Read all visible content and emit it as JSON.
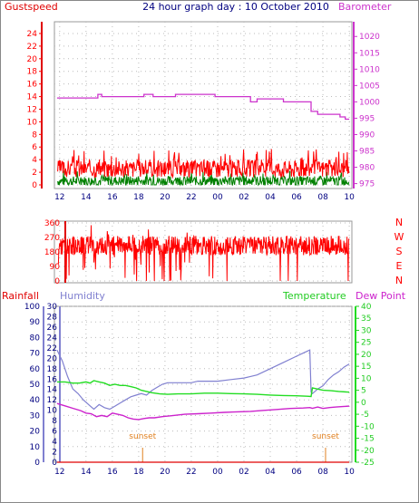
{
  "title": "24 hour graph day : 10 October 2010",
  "colors": {
    "gust": "#ff0000",
    "wind": "#008000",
    "baro": "#cc33cc",
    "dir": "#ff0000",
    "hum": "#8080d0",
    "temp": "#22dd22",
    "dew": "#cc22cc",
    "rain": "#e00000",
    "sunset": "#e08020",
    "axisBlue": "#000080",
    "frame": "#999999",
    "grid": "#bbbbbb"
  },
  "chart_data": [
    {
      "type": "line",
      "name": "wind-barometer",
      "left_label": "Gustspeed",
      "right_label": "Barometer",
      "left_ticks": [
        "0",
        "2",
        "4",
        "6",
        "8",
        "10",
        "12",
        "14",
        "16",
        "18",
        "20",
        "22",
        "24"
      ],
      "right_ticks": [
        "975",
        "980",
        "985",
        "990",
        "995",
        "1000",
        "1005",
        "1010",
        "1015",
        "1020"
      ],
      "ylim_left": [
        0,
        25
      ],
      "ylim_right": [
        973.5,
        1024.5
      ],
      "x_ticks": [
        "12",
        "14",
        "16",
        "18",
        "20",
        "22",
        "00",
        "02",
        "04",
        "06",
        "08",
        "10",
        "12",
        "14",
        "16",
        "18",
        "20",
        "22"
      ],
      "xlim": [
        11.6,
        34.2
      ],
      "series": [
        {
          "role": "barometer",
          "x": [
            11.8,
            14.9,
            14.9,
            15.2,
            15.2,
            18.4,
            18.4,
            19.1,
            19.1,
            20.8,
            20.8,
            23.8,
            23.8,
            26.5,
            26.5,
            27.0,
            27.0,
            29.0,
            29.0,
            31.1,
            31.1,
            31.6,
            31.6,
            33.3,
            33.3,
            33.7,
            33.7,
            34.0
          ],
          "y": [
            1001.2,
            1001.2,
            1002.3,
            1002.3,
            1001.6,
            1001.6,
            1002.3,
            1002.3,
            1001.6,
            1001.6,
            1002.3,
            1002.3,
            1001.6,
            1001.6,
            1000.0,
            1000.0,
            1000.9,
            1000.9,
            1000.0,
            1000.0,
            997.1,
            997.1,
            996.2,
            996.2,
            995.4,
            995.4,
            994.7,
            994.7
          ]
        },
        {
          "role": "gust",
          "mean": 2.6,
          "spread": 1.4
        },
        {
          "role": "wind",
          "mean": 0.6,
          "spread": 0.8
        }
      ]
    },
    {
      "type": "line",
      "name": "wind-direction",
      "left_ticks": [
        "0",
        "90",
        "180",
        "270",
        "360"
      ],
      "right_ticks": [
        "N",
        "W",
        "S",
        "E",
        "N"
      ],
      "ylim": [
        0,
        360
      ],
      "series": [
        {
          "role": "direction",
          "mean": 220,
          "spread": 60
        }
      ]
    },
    {
      "type": "line",
      "name": "temp-humidity",
      "labels": {
        "rainfall": "Rainfall",
        "humidity": "Humidity",
        "temperature": "Temperature",
        "dewpoint": "Dew Point"
      },
      "rain_ticks": [
        "0",
        "10",
        "20",
        "30",
        "40",
        "50",
        "60",
        "70",
        "80",
        "90",
        "100"
      ],
      "hum_ticks": [
        "0",
        "2",
        "4",
        "6",
        "8",
        "10",
        "12",
        "14",
        "16",
        "18",
        "20",
        "22",
        "24",
        "26",
        "28",
        "30"
      ],
      "temp_ticks": [
        "-25",
        "-20",
        "-15",
        "-10",
        "-5",
        "0",
        "5",
        "10",
        "15",
        "20",
        "25",
        "30",
        "35",
        "40"
      ],
      "ylim_rain": [
        0,
        100
      ],
      "ylim_temp": [
        -25,
        40
      ],
      "annotations": [
        {
          "text": "sunset",
          "x": 18.3
        },
        {
          "text": "sunset",
          "x": 32.2
        }
      ],
      "series": [
        {
          "role": "humidity",
          "x": [
            11.8,
            12.2,
            12.6,
            13.0,
            13.4,
            13.8,
            14.2,
            14.6,
            15.0,
            15.4,
            15.8,
            16.2,
            16.6,
            17.0,
            17.4,
            17.8,
            18.2,
            18.6,
            19.0,
            19.4,
            19.8,
            20.2,
            20.6,
            21.0,
            21.5,
            22.0,
            22.5,
            23.0,
            23.5,
            24.0,
            25.0,
            26.0,
            26.5,
            27.0,
            28.0,
            29.0,
            30.0,
            30.5,
            31.0,
            31.1,
            31.2,
            31.6,
            32.0,
            32.4,
            32.8,
            33.2,
            33.6,
            34.0
          ],
          "y": [
            72,
            65,
            55,
            47,
            44,
            40,
            37,
            34,
            37,
            35,
            34,
            36,
            38,
            40,
            42,
            43,
            44,
            43,
            46,
            48,
            50,
            51,
            51,
            51,
            51,
            51,
            52,
            52,
            52,
            52,
            53,
            54,
            55,
            56,
            60,
            64,
            68,
            70,
            72,
            45,
            44,
            47,
            49,
            53,
            56,
            58,
            61,
            63
          ]
        },
        {
          "role": "temperature",
          "x": [
            11.8,
            12.4,
            13.0,
            13.5,
            14.0,
            14.3,
            14.6,
            15.0,
            15.4,
            15.8,
            16.2,
            16.6,
            17.0,
            17.4,
            17.8,
            18.2,
            18.6,
            19.0,
            19.6,
            20.2,
            21.0,
            22.0,
            23.0,
            24.0,
            25.0,
            26.0,
            27.0,
            28.0,
            29.0,
            30.0,
            30.8,
            31.1,
            31.2,
            31.6,
            32.0,
            32.6,
            33.2,
            34.0
          ],
          "y": [
            8.5,
            8.5,
            8,
            8,
            8.5,
            8,
            9,
            8.5,
            8,
            7,
            7.5,
            7,
            7,
            6.5,
            6,
            5,
            4.5,
            4,
            3.5,
            3.3,
            3.5,
            3.5,
            3.8,
            3.8,
            3.6,
            3.5,
            3.3,
            3,
            2.8,
            2.7,
            2.5,
            2.4,
            6,
            5.5,
            5,
            4.8,
            4.5,
            4.2
          ]
        },
        {
          "role": "dewpoint",
          "x": [
            11.8,
            12.4,
            13.0,
            13.6,
            14.0,
            14.4,
            14.8,
            15.2,
            15.6,
            16.0,
            16.4,
            16.8,
            17.2,
            17.6,
            18.0,
            18.4,
            18.8,
            19.2,
            19.8,
            20.5,
            21.5,
            22.5,
            23.5,
            24.5,
            25.5,
            26.5,
            27.5,
            28.5,
            29.5,
            30.5,
            31.0,
            31.2,
            31.6,
            32.0,
            32.5,
            33.0,
            33.5,
            34.0
          ],
          "y": [
            -0.5,
            -1.5,
            -2.5,
            -3.5,
            -4.5,
            -4.8,
            -6,
            -5.5,
            -6,
            -4.5,
            -5,
            -5.5,
            -6.5,
            -7,
            -7.2,
            -6.8,
            -6.5,
            -6.5,
            -6,
            -5.6,
            -5,
            -4.8,
            -4.5,
            -4.2,
            -4,
            -3.8,
            -3.4,
            -3,
            -2.6,
            -2.4,
            -2.2,
            -2.5,
            -2,
            -2.6,
            -2.2,
            -2,
            -1.8,
            -1.6
          ]
        },
        {
          "role": "rainfall",
          "x": [
            11.8,
            34.0
          ],
          "y": [
            0,
            0
          ]
        }
      ]
    }
  ]
}
